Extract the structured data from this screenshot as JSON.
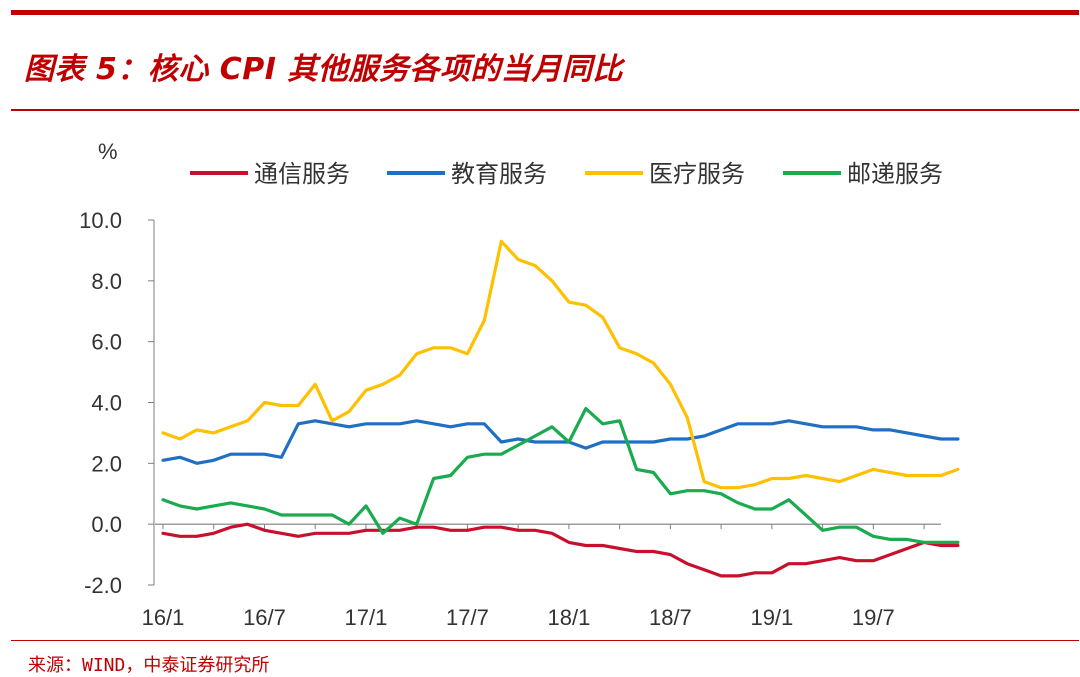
{
  "header": {
    "title": "图表 5：核心 CPI 其他服务各项的当月同比"
  },
  "footer": {
    "source": "来源：WIND，中泰证券研究所"
  },
  "colors": {
    "brand_red": "#c00000",
    "series": [
      "#c8102e",
      "#1f6fc5",
      "#ffc000",
      "#1aab4f"
    ]
  },
  "chart_data": {
    "type": "line",
    "y_unit": "%",
    "ylim": [
      -2.0,
      10.0
    ],
    "yticks": [
      "10.0",
      "8.0",
      "6.0",
      "4.0",
      "2.0",
      "0.0",
      "-2.0"
    ],
    "ytick_values": [
      10,
      8,
      6,
      4,
      2,
      0,
      -2
    ],
    "x_range": [
      0,
      46
    ],
    "xticks": [
      "16/1",
      "16/7",
      "17/1",
      "17/7",
      "18/1",
      "18/7",
      "19/1",
      "19/7"
    ],
    "xtick_positions": [
      0,
      6,
      12,
      18,
      24,
      30,
      36,
      42
    ],
    "x_start_month": "2016-01",
    "grid": false,
    "legend_position": "top",
    "series": [
      {
        "name": "通信服务",
        "values": [
          -0.3,
          -0.4,
          -0.4,
          -0.3,
          -0.1,
          0.0,
          -0.2,
          -0.3,
          -0.4,
          -0.3,
          -0.3,
          -0.3,
          -0.2,
          -0.2,
          -0.2,
          -0.1,
          -0.1,
          -0.2,
          -0.2,
          -0.1,
          -0.1,
          -0.2,
          -0.2,
          -0.3,
          -0.6,
          -0.7,
          -0.7,
          -0.8,
          -0.9,
          -0.9,
          -1.0,
          -1.3,
          -1.5,
          -1.7,
          -1.7,
          -1.6,
          -1.6,
          -1.3,
          -1.3,
          -1.2,
          -1.1,
          -1.2,
          -1.2,
          -1.0,
          -0.8,
          -0.6,
          -0.7,
          -0.7
        ]
      },
      {
        "name": "教育服务",
        "values": [
          2.1,
          2.2,
          2.0,
          2.1,
          2.3,
          2.3,
          2.3,
          2.2,
          3.3,
          3.4,
          3.3,
          3.2,
          3.3,
          3.3,
          3.3,
          3.4,
          3.3,
          3.2,
          3.3,
          3.3,
          2.7,
          2.8,
          2.7,
          2.7,
          2.7,
          2.5,
          2.7,
          2.7,
          2.7,
          2.7,
          2.8,
          2.8,
          2.9,
          3.1,
          3.3,
          3.3,
          3.3,
          3.4,
          3.3,
          3.2,
          3.2,
          3.2,
          3.1,
          3.1,
          3.0,
          2.9,
          2.8,
          2.8
        ]
      },
      {
        "name": "医疗服务",
        "values": [
          3.0,
          2.8,
          3.1,
          3.0,
          3.2,
          3.4,
          4.0,
          3.9,
          3.9,
          4.6,
          3.4,
          3.7,
          4.4,
          4.6,
          4.9,
          5.6,
          5.8,
          5.8,
          5.6,
          6.7,
          9.3,
          8.7,
          8.5,
          8.0,
          7.3,
          7.2,
          6.8,
          5.8,
          5.6,
          5.3,
          4.6,
          3.5,
          1.4,
          1.2,
          1.2,
          1.3,
          1.5,
          1.5,
          1.6,
          1.5,
          1.4,
          1.6,
          1.8,
          1.7,
          1.6,
          1.6,
          1.6,
          1.8
        ]
      },
      {
        "name": "邮递服务",
        "values": [
          0.8,
          0.6,
          0.5,
          0.6,
          0.7,
          0.6,
          0.5,
          0.3,
          0.3,
          0.3,
          0.3,
          0.0,
          0.6,
          -0.3,
          0.2,
          0.0,
          1.5,
          1.6,
          2.2,
          2.3,
          2.3,
          2.6,
          2.9,
          3.2,
          2.7,
          3.8,
          3.3,
          3.4,
          1.8,
          1.7,
          1.0,
          1.1,
          1.1,
          1.0,
          0.7,
          0.5,
          0.5,
          0.8,
          0.3,
          -0.2,
          -0.1,
          -0.1,
          -0.4,
          -0.5,
          -0.5,
          -0.6,
          -0.6,
          -0.6
        ]
      }
    ]
  }
}
